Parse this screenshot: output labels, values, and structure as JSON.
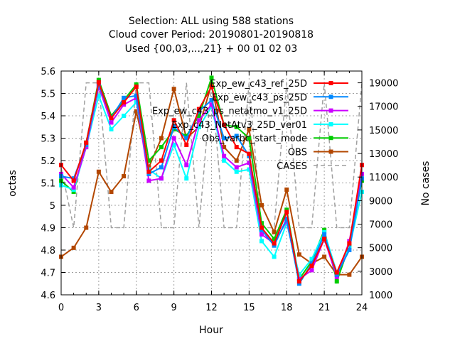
{
  "chart_data": {
    "type": "line",
    "title_lines": [
      "Selection: ALL using   588 stations",
      "Cloud cover   Period: 20190801-20190818",
      "Used {00,03,...,21} + 00 01 02 03"
    ],
    "xlabel": "Hour",
    "ylabel": "octas",
    "y2label": "No cases",
    "xlim": [
      0,
      24
    ],
    "ylim": [
      4.6,
      5.6
    ],
    "y2lim": [
      1000,
      20000
    ],
    "xticks": [
      "0",
      "3",
      "6",
      "9",
      "12",
      "15",
      "18",
      "21",
      "24"
    ],
    "yticks": [
      "4.6",
      "4.7",
      "4.8",
      "4.9",
      "5",
      "5.1",
      "5.2",
      "5.3",
      "5.4",
      "5.5",
      "5.6"
    ],
    "y2ticks": [
      "1000",
      "3000",
      "5000",
      "7000",
      "9000",
      "11000",
      "13000",
      "15000",
      "17000",
      "19000"
    ],
    "grid": true,
    "legend_position": "top-right",
    "x": [
      0,
      1,
      2,
      3,
      4,
      5,
      6,
      7,
      8,
      9,
      10,
      11,
      12,
      13,
      14,
      15,
      16,
      17,
      18,
      19,
      20,
      21,
      22,
      23,
      24
    ],
    "series": [
      {
        "name": "Exp_ew_c43_ref_25D",
        "color": "#ff0000",
        "marker": "square",
        "values": [
          5.18,
          5.11,
          5.28,
          5.55,
          5.39,
          5.46,
          5.53,
          5.15,
          5.2,
          5.38,
          5.27,
          5.43,
          5.53,
          5.36,
          5.26,
          5.23,
          4.9,
          4.83,
          4.97,
          4.66,
          4.73,
          4.85,
          4.7,
          4.83,
          5.18
        ]
      },
      {
        "name": "Exp_ew_c43_ps_25D",
        "color": "#0088ff",
        "marker": "square",
        "values": [
          5.13,
          5.12,
          5.27,
          5.54,
          5.39,
          5.48,
          5.49,
          5.14,
          5.17,
          5.35,
          5.3,
          5.42,
          5.47,
          5.3,
          5.31,
          5.22,
          4.89,
          4.82,
          4.94,
          4.65,
          4.74,
          4.87,
          4.69,
          4.8,
          5.12
        ]
      },
      {
        "name": "Exp_ew_c43_ps_netatmo_v1_25D",
        "color": "#cc00ff",
        "marker": "square",
        "values": [
          5.14,
          5.08,
          5.26,
          5.53,
          5.37,
          5.45,
          5.48,
          5.11,
          5.12,
          5.3,
          5.18,
          5.38,
          5.45,
          5.22,
          5.17,
          5.19,
          4.87,
          4.83,
          4.93,
          4.67,
          4.71,
          4.85,
          4.68,
          4.84,
          5.14
        ]
      },
      {
        "name": "Exp_c43_NetAtv3_25D_ver01",
        "color": "#00ffff",
        "marker": "square",
        "values": [
          5.09,
          5.07,
          5.26,
          5.49,
          5.34,
          5.4,
          5.46,
          5.16,
          5.12,
          5.27,
          5.12,
          5.35,
          5.44,
          5.2,
          5.15,
          5.16,
          4.84,
          4.77,
          4.92,
          4.69,
          4.76,
          4.88,
          4.7,
          4.81,
          5.06
        ]
      },
      {
        "name": "Obs_varbc_start_mode",
        "color": "#00cc00",
        "marker": "square",
        "values": [
          5.11,
          5.06,
          5.28,
          5.56,
          5.4,
          5.47,
          5.54,
          5.2,
          5.26,
          5.34,
          5.31,
          5.4,
          5.57,
          5.36,
          5.35,
          5.3,
          4.92,
          4.85,
          4.98,
          4.67,
          4.75,
          4.89,
          4.66,
          4.82,
          5.11
        ]
      },
      {
        "name": "OBS",
        "color": "#b34700",
        "marker": "square",
        "values": [
          4.77,
          4.81,
          4.9,
          5.15,
          5.06,
          5.13,
          5.42,
          5.17,
          5.3,
          5.52,
          5.3,
          5.35,
          5.54,
          5.26,
          5.2,
          5.34,
          5.0,
          4.88,
          5.07,
          4.78,
          4.74,
          4.77,
          4.69,
          4.69,
          4.77
        ]
      },
      {
        "name": "CASES",
        "color": "#a0a0a0",
        "marker": "none",
        "dashed": true,
        "axis": "y2",
        "values": [
          11800,
          6700,
          19000,
          19000,
          6700,
          6700,
          19000,
          19000,
          6700,
          6700,
          19000,
          6700,
          19000,
          6700,
          6700,
          19000,
          6700,
          6700,
          19000,
          6700,
          6700,
          19000,
          6700,
          6700,
          19000
        ]
      }
    ]
  }
}
